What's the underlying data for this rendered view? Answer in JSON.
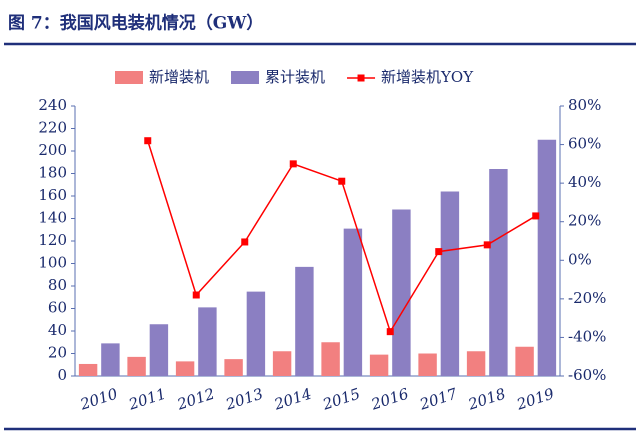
{
  "chart_data": {
    "type": "bar-line",
    "title": "图 7：我国风电装机情况（GW）",
    "categories": [
      "2010",
      "2011",
      "2012",
      "2013",
      "2014",
      "2015",
      "2016",
      "2017",
      "2018",
      "2019"
    ],
    "series": [
      {
        "name": "新增装机",
        "color": "#f28080",
        "type": "bar",
        "values": [
          10.7,
          17,
          13,
          15,
          22,
          30,
          19,
          20,
          22,
          26
        ]
      },
      {
        "name": "累计装机",
        "color": "#8b7fc2",
        "type": "bar",
        "values": [
          29,
          46,
          61,
          75,
          97,
          131,
          148,
          164,
          184,
          210
        ]
      },
      {
        "name": "新增装机YOY",
        "color": "#ff0000",
        "type": "line",
        "axis": "y2",
        "values": [
          null,
          62,
          -18,
          9.5,
          50,
          41,
          -37,
          4.5,
          8,
          23
        ]
      }
    ],
    "ylim": [
      0,
      240
    ],
    "yticks": [
      0,
      20,
      40,
      60,
      80,
      100,
      120,
      140,
      160,
      180,
      200,
      220,
      240
    ],
    "y2lim": [
      -60,
      80
    ],
    "y2ticks": [
      {
        "value": -60,
        "label": "-60%"
      },
      {
        "value": -40,
        "label": "-40%"
      },
      {
        "value": -20,
        "label": "-20%"
      },
      {
        "value": 0,
        "label": "0%"
      },
      {
        "value": 20,
        "label": "20%"
      },
      {
        "value": 40,
        "label": "40%"
      },
      {
        "value": 60,
        "label": "60%"
      },
      {
        "value": 80,
        "label": "80%"
      }
    ],
    "legend": "top",
    "grid": false
  }
}
